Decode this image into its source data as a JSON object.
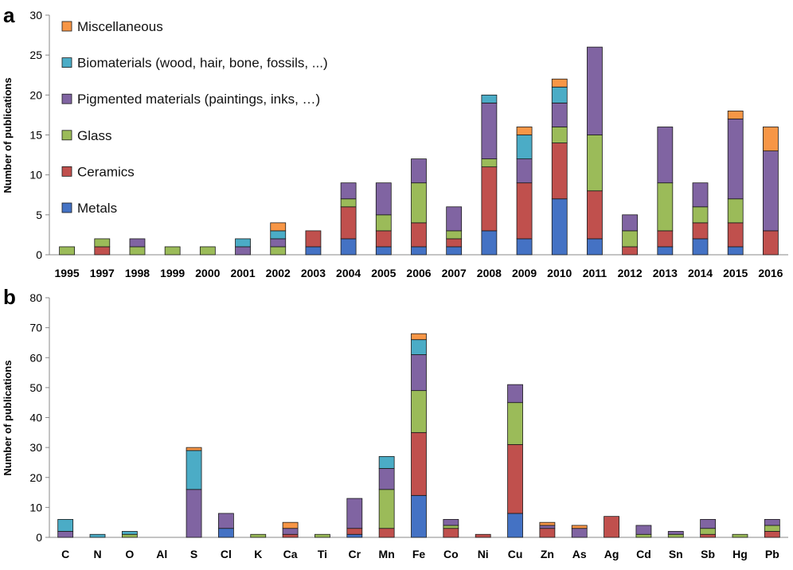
{
  "colors": {
    "Metals": "#4472C4",
    "Ceramics": "#C0504D",
    "Glass": "#9BBB59",
    "Pigmented": "#8064A2",
    "Biomaterials": "#4BACC6",
    "Miscellaneous": "#F79646"
  },
  "legend": [
    {
      "key": "Miscellaneous",
      "label": "Miscellaneous"
    },
    {
      "key": "Biomaterials",
      "label": "Biomaterials (wood, hair, bone, fossils, ...)"
    },
    {
      "key": "Pigmented",
      "label": "Pigmented materials (paintings, inks, …)"
    },
    {
      "key": "Glass",
      "label": "Glass"
    },
    {
      "key": "Ceramics",
      "label": "Ceramics"
    },
    {
      "key": "Metals",
      "label": "Metals"
    }
  ],
  "chart_data": [
    {
      "type": "bar",
      "stacked": true,
      "panel": "a",
      "ylabel": "Number of publications",
      "ylim": [
        0,
        30
      ],
      "yticks": [
        0,
        5,
        10,
        15,
        20,
        25,
        30
      ],
      "categories": [
        "1995",
        "1997",
        "1998",
        "1999",
        "2000",
        "2001",
        "2002",
        "2003",
        "2004",
        "2005",
        "2006",
        "2007",
        "2008",
        "2009",
        "2010",
        "2011",
        "2012",
        "2013",
        "2014",
        "2015",
        "2016"
      ],
      "series": [
        {
          "name": "Metals",
          "values": [
            0,
            0,
            0,
            0,
            0,
            0,
            0,
            1,
            2,
            1,
            1,
            1,
            3,
            2,
            7,
            2,
            0,
            1,
            2,
            1,
            0
          ]
        },
        {
          "name": "Ceramics",
          "values": [
            0,
            1,
            0,
            0,
            0,
            0,
            0,
            2,
            4,
            2,
            3,
            1,
            8,
            7,
            7,
            6,
            1,
            2,
            2,
            3,
            3
          ]
        },
        {
          "name": "Glass",
          "values": [
            1,
            1,
            1,
            1,
            1,
            0,
            1,
            0,
            1,
            2,
            5,
            1,
            1,
            0,
            2,
            7,
            2,
            6,
            2,
            3,
            0
          ]
        },
        {
          "name": "Pigmented",
          "values": [
            0,
            0,
            1,
            0,
            0,
            1,
            1,
            0,
            2,
            4,
            3,
            3,
            7,
            3,
            3,
            11,
            2,
            7,
            3,
            10,
            10
          ]
        },
        {
          "name": "Biomaterials",
          "values": [
            0,
            0,
            0,
            0,
            0,
            1,
            1,
            0,
            0,
            0,
            0,
            0,
            1,
            3,
            2,
            0,
            0,
            0,
            0,
            0,
            0
          ]
        },
        {
          "name": "Miscellaneous",
          "values": [
            0,
            0,
            0,
            0,
            0,
            0,
            1,
            0,
            0,
            0,
            0,
            0,
            0,
            1,
            1,
            0,
            0,
            0,
            0,
            1,
            3
          ]
        }
      ]
    },
    {
      "type": "bar",
      "stacked": true,
      "panel": "b",
      "ylabel": "Number of publications",
      "ylim": [
        0,
        80
      ],
      "yticks": [
        0,
        10,
        20,
        30,
        40,
        50,
        60,
        70,
        80
      ],
      "categories": [
        "C",
        "N",
        "O",
        "Al",
        "S",
        "Cl",
        "K",
        "Ca",
        "Ti",
        "Cr",
        "Mn",
        "Fe",
        "Co",
        "Ni",
        "Cu",
        "Zn",
        "As",
        "Ag",
        "Cd",
        "Sn",
        "Sb",
        "Hg",
        "Pb"
      ],
      "series": [
        {
          "name": "Metals",
          "values": [
            0,
            0,
            0,
            0,
            0,
            3,
            0,
            0,
            0,
            1,
            0,
            14,
            0,
            0,
            8,
            0,
            0,
            0,
            0,
            0,
            0,
            0,
            0
          ]
        },
        {
          "name": "Ceramics",
          "values": [
            0,
            0,
            0,
            0,
            0,
            0,
            0,
            1,
            0,
            2,
            3,
            21,
            3,
            1,
            23,
            3,
            0,
            7,
            0,
            0,
            1,
            0,
            2
          ]
        },
        {
          "name": "Glass",
          "values": [
            0,
            0,
            1,
            0,
            0,
            0,
            1,
            0,
            1,
            0,
            13,
            14,
            1,
            0,
            14,
            0,
            0,
            0,
            1,
            1,
            2,
            1,
            2
          ]
        },
        {
          "name": "Pigmented",
          "values": [
            2,
            0,
            0,
            0,
            16,
            5,
            0,
            2,
            0,
            10,
            7,
            12,
            2,
            0,
            6,
            1,
            3,
            0,
            3,
            1,
            3,
            0,
            2
          ]
        },
        {
          "name": "Biomaterials",
          "values": [
            4,
            1,
            1,
            0,
            13,
            0,
            0,
            0,
            0,
            0,
            4,
            5,
            0,
            0,
            0,
            0,
            0,
            0,
            0,
            0,
            0,
            0,
            0
          ]
        },
        {
          "name": "Miscellaneous",
          "values": [
            0,
            0,
            0,
            0,
            1,
            0,
            0,
            2,
            0,
            0,
            0,
            2,
            0,
            0,
            0,
            1,
            1,
            0,
            0,
            0,
            0,
            0,
            0
          ]
        }
      ]
    }
  ]
}
